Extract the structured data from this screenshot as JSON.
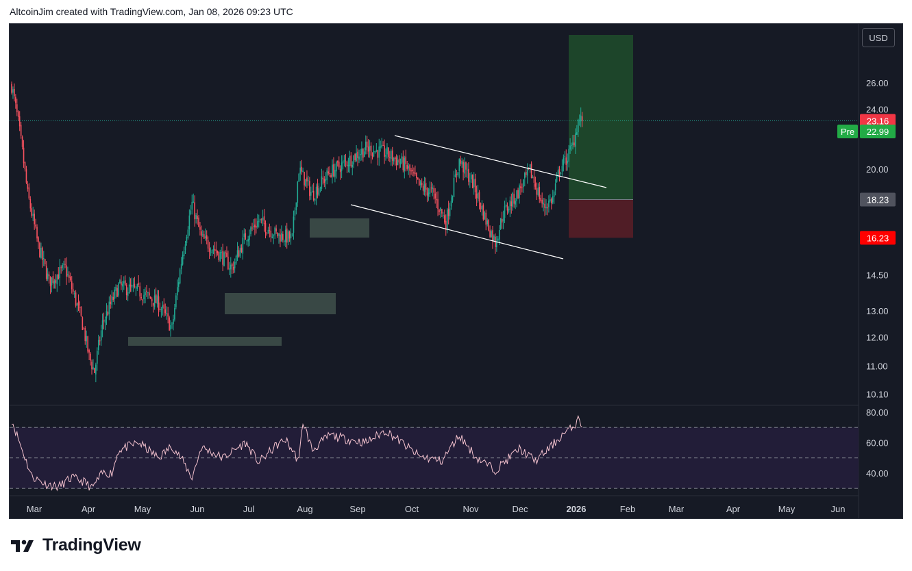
{
  "header": {
    "attribution": "AltcoinJim created with TradingView.com, Jan 08, 2026 09:23 UTC"
  },
  "brand": {
    "name": "TradingView"
  },
  "toolbar": {
    "currency_label": "USD"
  },
  "price_badges": {
    "last": {
      "value": "23.16",
      "color": "#f23645"
    },
    "pre": {
      "label": "Pre",
      "value": "22.99",
      "color": "#22ab46"
    },
    "entry": {
      "value": "18.23",
      "color": "#50535e"
    },
    "stop": {
      "value": "16.23",
      "color": "#ff0000"
    }
  },
  "chart_data": [
    {
      "type": "candlestick",
      "x_ticks": [
        "Mar",
        "Apr",
        "May",
        "Jun",
        "Jul",
        "Aug",
        "Sep",
        "Oct",
        "Nov",
        "Dec",
        "2026",
        "Feb",
        "Mar",
        "Apr",
        "May",
        "Jun"
      ],
      "y_scale": "log",
      "y_ticks": [
        "26.00",
        "24.00",
        "20.00",
        "14.50",
        "13.00",
        "12.00",
        "11.00",
        "10.10"
      ],
      "ylim": [
        9.7,
        30
      ],
      "grid": false,
      "colors": {
        "up": "#22ab94",
        "down": "#f7525f",
        "bg": "#161a25"
      },
      "anchors_approx": [
        [
          0,
          25.8
        ],
        [
          5,
          23
        ],
        [
          12,
          18.5
        ],
        [
          20,
          15.8
        ],
        [
          28,
          14.2
        ],
        [
          40,
          14.8
        ],
        [
          53,
          12.5
        ],
        [
          58,
          11.3
        ],
        [
          62,
          10.8
        ],
        [
          68,
          12.5
        ],
        [
          80,
          14
        ],
        [
          95,
          13.8
        ],
        [
          110,
          13.3
        ],
        [
          120,
          12.3
        ],
        [
          128,
          15.5
        ],
        [
          135,
          18
        ],
        [
          142,
          16.2
        ],
        [
          155,
          15.5
        ],
        [
          165,
          14.8
        ],
        [
          175,
          16.3
        ],
        [
          185,
          17.1
        ],
        [
          198,
          16.4
        ],
        [
          210,
          16.2
        ],
        [
          215,
          20
        ],
        [
          225,
          18.5
        ],
        [
          238,
          19.8
        ],
        [
          250,
          20.4
        ],
        [
          265,
          21.3
        ],
        [
          280,
          21
        ],
        [
          295,
          20.2
        ],
        [
          305,
          19
        ],
        [
          315,
          18.6
        ],
        [
          325,
          17
        ],
        [
          335,
          20.5
        ],
        [
          345,
          19.2
        ],
        [
          355,
          17.1
        ],
        [
          362,
          16
        ],
        [
          368,
          17.5
        ],
        [
          378,
          18.5
        ],
        [
          388,
          19.9
        ],
        [
          398,
          17.8
        ],
        [
          405,
          18.3
        ],
        [
          410,
          20
        ],
        [
          415,
          20.6
        ],
        [
          420,
          21.5
        ],
        [
          424,
          23.2
        ],
        [
          427,
          23.16
        ]
      ],
      "overlays": {
        "descending_channel": "parallel channel from Sep to late Dec, broken upward",
        "long_position": {
          "entry": 18.23,
          "stop": 16.23,
          "target_above": "26+"
        },
        "demand_zones": 4
      }
    },
    {
      "type": "line",
      "name": "RSI",
      "y_ticks": [
        "80.00",
        "60.00",
        "40.00"
      ],
      "ylim": [
        25,
        85
      ],
      "bands": [
        70,
        50,
        30
      ],
      "line_color": "#f5c3cf",
      "anchors_approx": [
        [
          0,
          75
        ],
        [
          8,
          55
        ],
        [
          15,
          38
        ],
        [
          25,
          33
        ],
        [
          35,
          31
        ],
        [
          45,
          37
        ],
        [
          55,
          34
        ],
        [
          60,
          30
        ],
        [
          68,
          40
        ],
        [
          75,
          40
        ],
        [
          80,
          55
        ],
        [
          95,
          60
        ],
        [
          110,
          50
        ],
        [
          120,
          58
        ],
        [
          128,
          48
        ],
        [
          135,
          37
        ],
        [
          142,
          57
        ],
        [
          158,
          50
        ],
        [
          175,
          60
        ],
        [
          185,
          47
        ],
        [
          198,
          58
        ],
        [
          205,
          62
        ],
        [
          215,
          48
        ],
        [
          218,
          74
        ],
        [
          225,
          55
        ],
        [
          238,
          65
        ],
        [
          252,
          62
        ],
        [
          265,
          60
        ],
        [
          280,
          68
        ],
        [
          292,
          60
        ],
        [
          305,
          51
        ],
        [
          322,
          48
        ],
        [
          335,
          65
        ],
        [
          348,
          50
        ],
        [
          362,
          42
        ],
        [
          380,
          56
        ],
        [
          392,
          48
        ],
        [
          402,
          56
        ],
        [
          412,
          65
        ],
        [
          420,
          70
        ],
        [
          424,
          75
        ],
        [
          427,
          72
        ]
      ]
    }
  ]
}
